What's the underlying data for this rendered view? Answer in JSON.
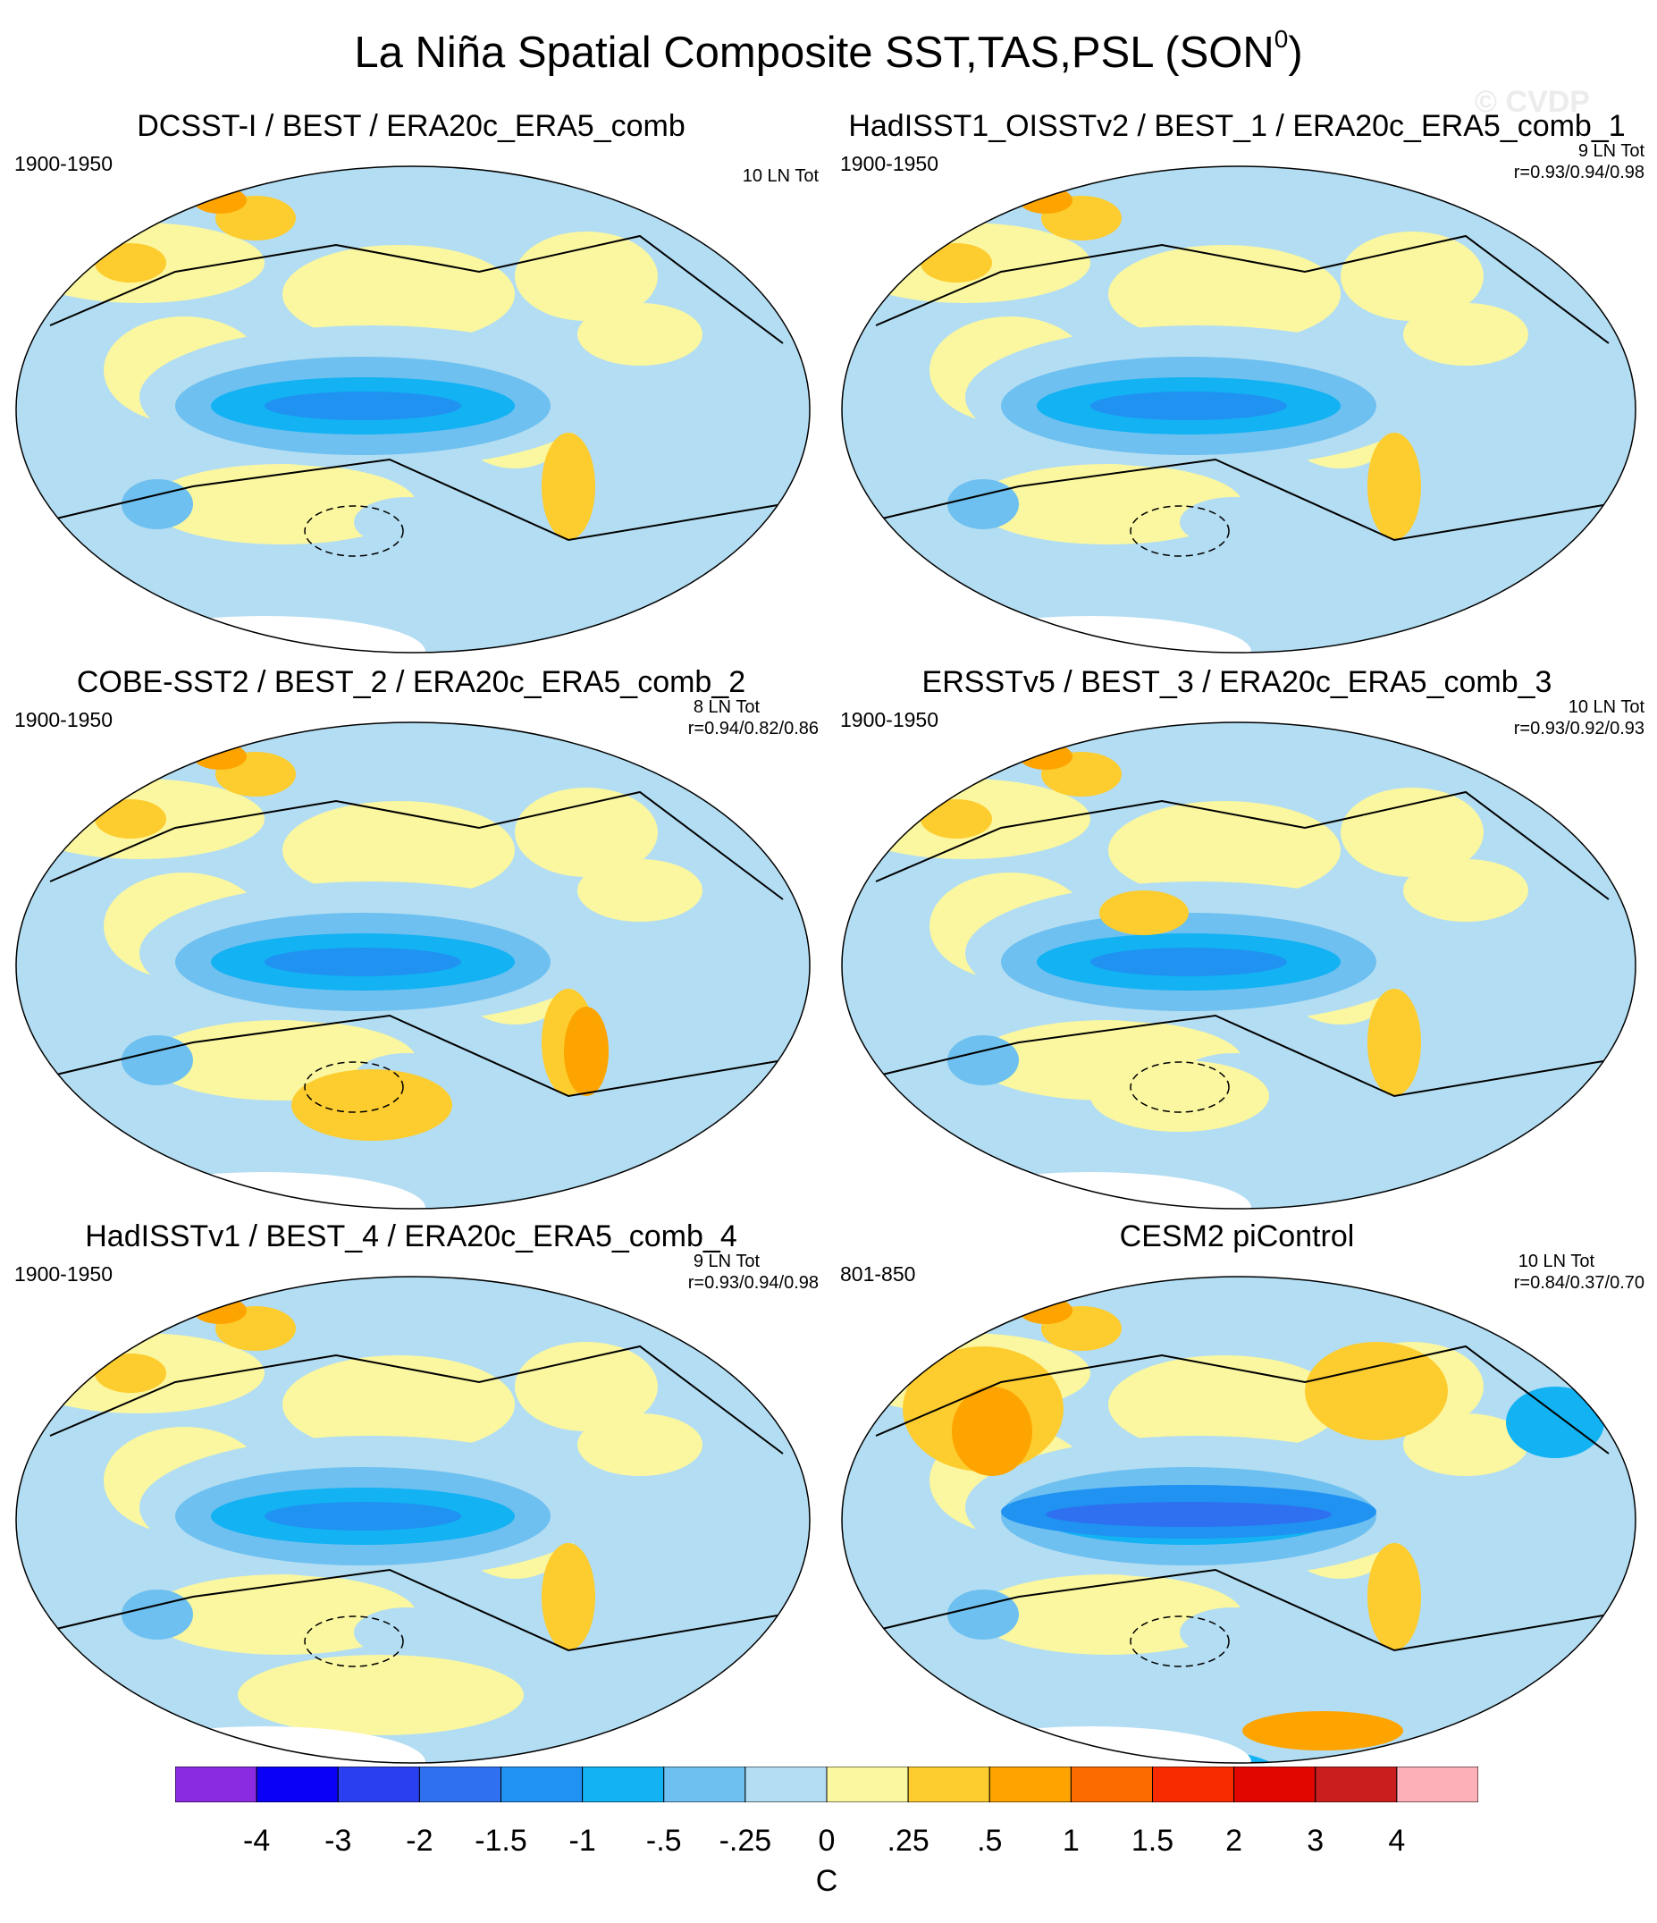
{
  "figure": {
    "title": "La Niña Spatial Composite SST,TAS,PSL (SON",
    "title_sup": "0",
    "title_end": ")",
    "watermark": "© CVDP"
  },
  "chart_data": {
    "type": "heatmap",
    "title": "La Niña Spatial Composite SST,TAS,PSL (SON0)",
    "variables": [
      "SST",
      "TAS",
      "PSL"
    ],
    "season": "SON0",
    "units": "C",
    "colorbar": {
      "labels": [
        "-4",
        "-3",
        "-2",
        "-1.5",
        "-1",
        "-.5",
        "-.25",
        "0",
        ".25",
        ".5",
        "1",
        "1.5",
        "2",
        "3",
        "4"
      ],
      "colors": [
        "#8a2be2",
        "#0a00f5",
        "#2a3ff0",
        "#2e70ef",
        "#2092f2",
        "#12b2f3",
        "#6ec0f0",
        "#b3ddf2",
        "#fbf7a0",
        "#fdcc2e",
        "#fda400",
        "#fc6b00",
        "#f82a00",
        "#e20600",
        "#c81e1e",
        "#feb0b8"
      ]
    },
    "panels": [
      {
        "title": "DCSST-I / BEST / ERA20c_ERA5_comb",
        "period": "1900-1950",
        "count": "10 LN Tot",
        "corr": ""
      },
      {
        "title": "HadISST1_OISSTv2 / BEST_1 / ERA20c_ERA5_comb_1",
        "period": "1900-1950",
        "count": "9 LN Tot",
        "corr": "r=0.93/0.94/0.98"
      },
      {
        "title": "COBE-SST2 / BEST_2 / ERA20c_ERA5_comb_2",
        "period": "1900-1950",
        "count": "8 LN Tot",
        "corr": "r=0.94/0.82/0.86"
      },
      {
        "title": "ERSSTv5 / BEST_3 / ERA20c_ERA5_comb_3",
        "period": "1900-1950",
        "count": "10 LN Tot",
        "corr": "r=0.93/0.92/0.93"
      },
      {
        "title": "HadISSTv1 / BEST_4 / ERA20c_ERA5_comb_4",
        "period": "1900-1950",
        "count": "9 LN Tot",
        "corr": "r=0.93/0.94/0.98"
      },
      {
        "title": "CESM2 piControl",
        "period": "801-850",
        "count": "10 LN Tot",
        "corr": "r=0.84/0.37/0.70"
      }
    ]
  }
}
